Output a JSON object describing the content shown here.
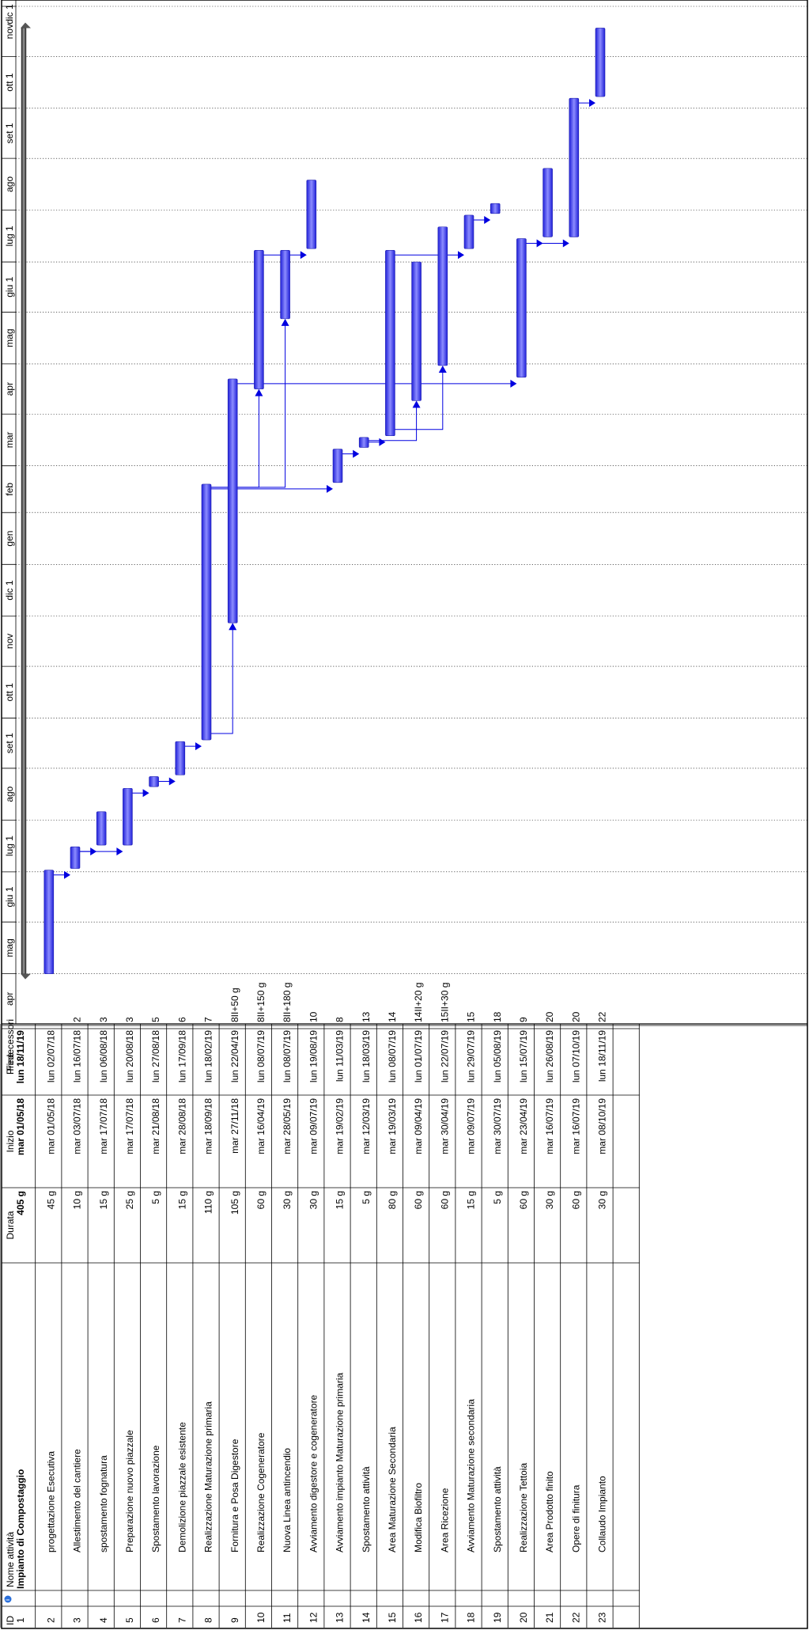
{
  "chart_data": {
    "type": "gantt",
    "columns": {
      "id": "ID",
      "info": "i",
      "name": "Nome attività",
      "duration": "Durata",
      "start": "Inizio",
      "end": "Fine",
      "pred": "Predecessori"
    },
    "timescale": [
      "apr",
      "mag",
      "giu 1",
      "lug 1",
      "ago",
      "set 1",
      "ott 1",
      "nov",
      "dic 1",
      "gen",
      "feb",
      "mar",
      "apr",
      "mag",
      "giu 1",
      "lug 1",
      "ago",
      "set 1",
      "ott 1",
      "nov",
      "dic 1"
    ],
    "timescale_start": "2018-04-01",
    "timescale_end": "2019-12-01",
    "tasks": [
      {
        "id": "1",
        "name": "Impianto di Compostaggio",
        "duration": "405 g",
        "start": "mar 01/05/18",
        "end": "lun 18/11/19",
        "pred": "",
        "summary": true,
        "s": "2018-05-01",
        "e": "2019-11-18"
      },
      {
        "id": "2",
        "name": "progettazione Esecutiva",
        "duration": "45 g",
        "start": "mar 01/05/18",
        "end": "lun 02/07/18",
        "pred": "",
        "s": "2018-05-01",
        "e": "2018-07-02"
      },
      {
        "id": "3",
        "name": "Allestimento del cantiere",
        "duration": "10 g",
        "start": "mar 03/07/18",
        "end": "lun 16/07/18",
        "pred": "2",
        "s": "2018-07-03",
        "e": "2018-07-16"
      },
      {
        "id": "4",
        "name": "spostamento fognatura",
        "duration": "15 g",
        "start": "mar 17/07/18",
        "end": "lun 06/08/18",
        "pred": "3",
        "s": "2018-07-17",
        "e": "2018-08-06"
      },
      {
        "id": "5",
        "name": "Preparazione nuovo piazzale",
        "duration": "25 g",
        "start": "mar 17/07/18",
        "end": "lun 20/08/18",
        "pred": "3",
        "s": "2018-07-17",
        "e": "2018-08-20"
      },
      {
        "id": "6",
        "name": "Spostamento lavorazione",
        "duration": "5 g",
        "start": "mar 21/08/18",
        "end": "lun 27/08/18",
        "pred": "5",
        "s": "2018-08-21",
        "e": "2018-08-27"
      },
      {
        "id": "7",
        "name": "Demolizione piazzale esistente",
        "duration": "15 g",
        "start": "mar 28/08/18",
        "end": "lun 17/09/18",
        "pred": "6",
        "s": "2018-08-28",
        "e": "2018-09-17"
      },
      {
        "id": "8",
        "name": "Realizzazione Maturazione primaria",
        "duration": "110 g",
        "start": "mar 18/09/18",
        "end": "lun 18/02/19",
        "pred": "7",
        "s": "2018-09-18",
        "e": "2019-02-18"
      },
      {
        "id": "9",
        "name": "Fornitura e Posa Digestore",
        "duration": "105 g",
        "start": "mar 27/11/18",
        "end": "lun 22/04/19",
        "pred": "8II+50 g",
        "s": "2018-11-27",
        "e": "2019-04-22"
      },
      {
        "id": "10",
        "name": "Realizzazione Cogeneratore",
        "duration": "60 g",
        "start": "mar 16/04/19",
        "end": "lun 08/07/19",
        "pred": "8II+150 g",
        "s": "2019-04-16",
        "e": "2019-07-08"
      },
      {
        "id": "11",
        "name": "Nuova Linea antincendio",
        "duration": "30 g",
        "start": "mar 28/05/19",
        "end": "lun 08/07/19",
        "pred": "8II+180 g",
        "s": "2019-05-28",
        "e": "2019-07-08"
      },
      {
        "id": "12",
        "name": "Avviamento digestore e cogeneratore",
        "duration": "30 g",
        "start": "mar 09/07/19",
        "end": "lun 19/08/19",
        "pred": "10",
        "s": "2019-07-09",
        "e": "2019-08-19"
      },
      {
        "id": "13",
        "name": "Avviamento impianto Maturazione primaria",
        "duration": "15 g",
        "start": "mar 19/02/19",
        "end": "lun 11/03/19",
        "pred": "8",
        "s": "2019-02-19",
        "e": "2019-03-11"
      },
      {
        "id": "14",
        "name": "Spostamento attività",
        "duration": "5 g",
        "start": "mar 12/03/19",
        "end": "lun 18/03/19",
        "pred": "13",
        "s": "2019-03-12",
        "e": "2019-03-18"
      },
      {
        "id": "15",
        "name": "Area Maturazione Secondaria",
        "duration": "80 g",
        "start": "mar 19/03/19",
        "end": "lun 08/07/19",
        "pred": "14",
        "s": "2019-03-19",
        "e": "2019-07-08"
      },
      {
        "id": "16",
        "name": "Modifica Biofiltro",
        "duration": "60 g",
        "start": "mar 09/04/19",
        "end": "lun 01/07/19",
        "pred": "14II+20 g",
        "s": "2019-04-09",
        "e": "2019-07-01"
      },
      {
        "id": "17",
        "name": "Area Ricezione",
        "duration": "60 g",
        "start": "mar 30/04/19",
        "end": "lun 22/07/19",
        "pred": "15II+30 g",
        "s": "2019-04-30",
        "e": "2019-07-22"
      },
      {
        "id": "18",
        "name": "Avviamento Maturazione secondaria",
        "duration": "15 g",
        "start": "mar 09/07/19",
        "end": "lun 29/07/19",
        "pred": "15",
        "s": "2019-07-09",
        "e": "2019-07-29"
      },
      {
        "id": "19",
        "name": "Spostamento attività",
        "duration": "5 g",
        "start": "mar 30/07/19",
        "end": "lun 05/08/19",
        "pred": "18",
        "s": "2019-07-30",
        "e": "2019-08-05"
      },
      {
        "id": "20",
        "name": "Realizzazione Tettoia",
        "duration": "60 g",
        "start": "mar 23/04/19",
        "end": "lun 15/07/19",
        "pred": "9",
        "s": "2019-04-23",
        "e": "2019-07-15"
      },
      {
        "id": "21",
        "name": "Area Prodotto finito",
        "duration": "30 g",
        "start": "mar 16/07/19",
        "end": "lun 26/08/19",
        "pred": "20",
        "s": "2019-07-16",
        "e": "2019-08-26"
      },
      {
        "id": "22",
        "name": "Opere di finitura",
        "duration": "60 g",
        "start": "mar 16/07/19",
        "end": "lun 07/10/19",
        "pred": "20",
        "s": "2019-07-16",
        "e": "2019-10-07"
      },
      {
        "id": "23",
        "name": "Collaudo Impianto",
        "duration": "30 g",
        "start": "mar 08/10/19",
        "end": "lun 18/11/19",
        "pred": "22",
        "s": "2019-10-08",
        "e": "2019-11-18"
      }
    ],
    "links": [
      [
        "2",
        "3"
      ],
      [
        "3",
        "4"
      ],
      [
        "3",
        "5"
      ],
      [
        "5",
        "6"
      ],
      [
        "6",
        "7"
      ],
      [
        "7",
        "8"
      ],
      [
        "8",
        "9"
      ],
      [
        "8",
        "10"
      ],
      [
        "8",
        "11"
      ],
      [
        "10",
        "12"
      ],
      [
        "8",
        "13"
      ],
      [
        "13",
        "14"
      ],
      [
        "14",
        "15"
      ],
      [
        "14",
        "16"
      ],
      [
        "15",
        "17"
      ],
      [
        "15",
        "18"
      ],
      [
        "18",
        "19"
      ],
      [
        "9",
        "20"
      ],
      [
        "20",
        "21"
      ],
      [
        "20",
        "22"
      ],
      [
        "22",
        "23"
      ]
    ],
    "colors": {
      "bar": "#3c3cf0",
      "bar_light": "#8c8cff",
      "link": "#0000e0",
      "summary": "#444444",
      "grid": "#000000"
    }
  }
}
